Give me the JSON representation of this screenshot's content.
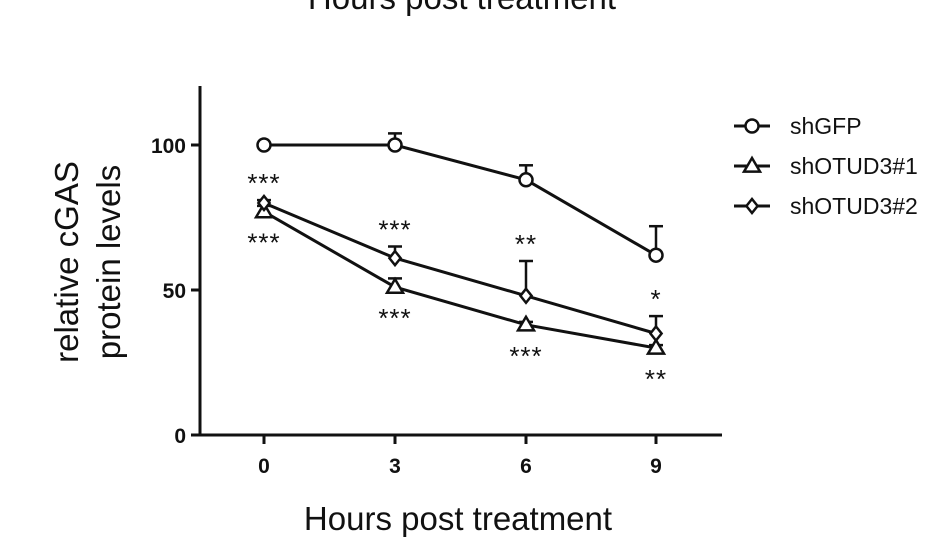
{
  "chart_data": {
    "type": "line",
    "top_title_fragment": "Hours post treatment",
    "xlabel": "Hours post treatment",
    "ylabel_line1": "relative cGAS",
    "ylabel_line2": "protein levels",
    "x": [
      0,
      3,
      6,
      9
    ],
    "x_tick_labels": [
      "0",
      "3",
      "6",
      "9"
    ],
    "ylim": [
      0,
      120
    ],
    "y_ticks": [
      0,
      50,
      100
    ],
    "y_tick_labels": [
      "0",
      "50",
      "100"
    ],
    "legend_position": "right",
    "series": [
      {
        "name": "shGFP",
        "marker": "circle",
        "values": [
          100,
          100,
          88,
          62
        ],
        "error_upper": [
          0,
          4,
          5,
          10
        ],
        "significance": [
          "",
          "",
          "",
          ""
        ]
      },
      {
        "name": "shOTUD3#1",
        "marker": "triangle",
        "values": [
          77,
          51,
          38,
          30
        ],
        "error_upper": [
          2,
          3,
          1,
          1
        ],
        "significance": [
          "***",
          "***",
          "***",
          "**"
        ]
      },
      {
        "name": "shOTUD3#2",
        "marker": "diamond",
        "values": [
          80,
          61,
          48,
          35
        ],
        "error_upper": [
          1,
          4,
          12,
          6
        ],
        "significance": [
          "***",
          "***",
          "**",
          "*"
        ]
      }
    ]
  }
}
